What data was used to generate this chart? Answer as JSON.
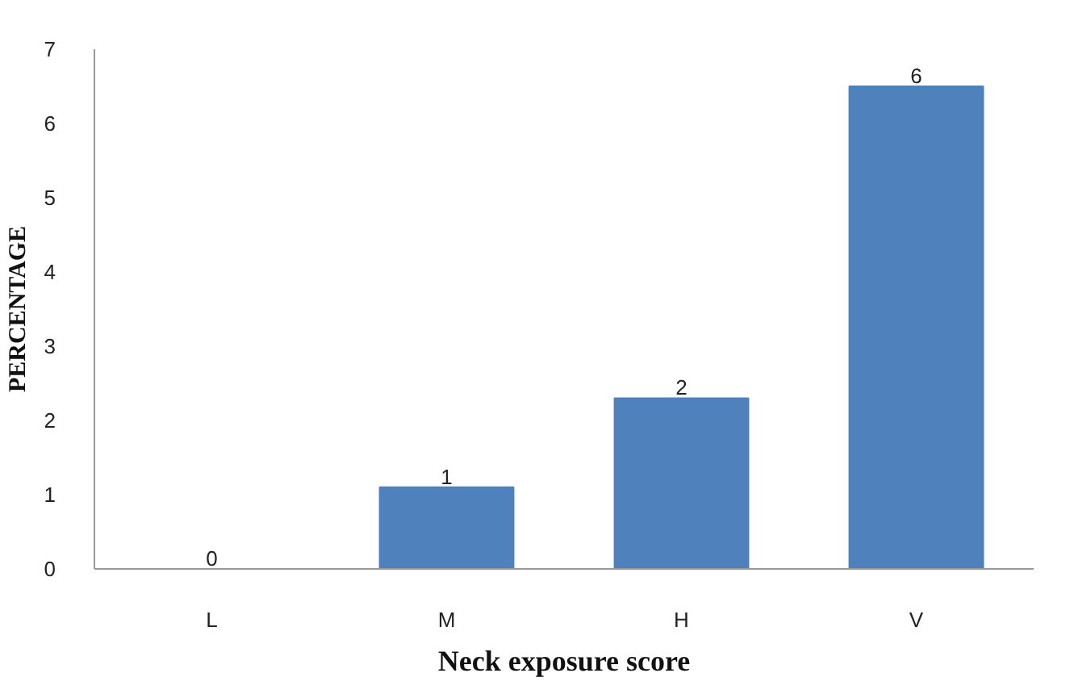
{
  "chart_data": {
    "type": "bar",
    "xlabel": "Neck exposure score",
    "ylabel": "PERCENTAGE",
    "categories": [
      "L",
      "M",
      "H",
      "V"
    ],
    "values": [
      0,
      1.1,
      2.3,
      6.5
    ],
    "value_labels": [
      "0",
      "1",
      "2",
      "6"
    ],
    "color": "#4f81bd",
    "ylim": [
      0,
      7
    ],
    "yticks": [
      0,
      1,
      2,
      3,
      4,
      5,
      6,
      7
    ],
    "grid": false
  }
}
